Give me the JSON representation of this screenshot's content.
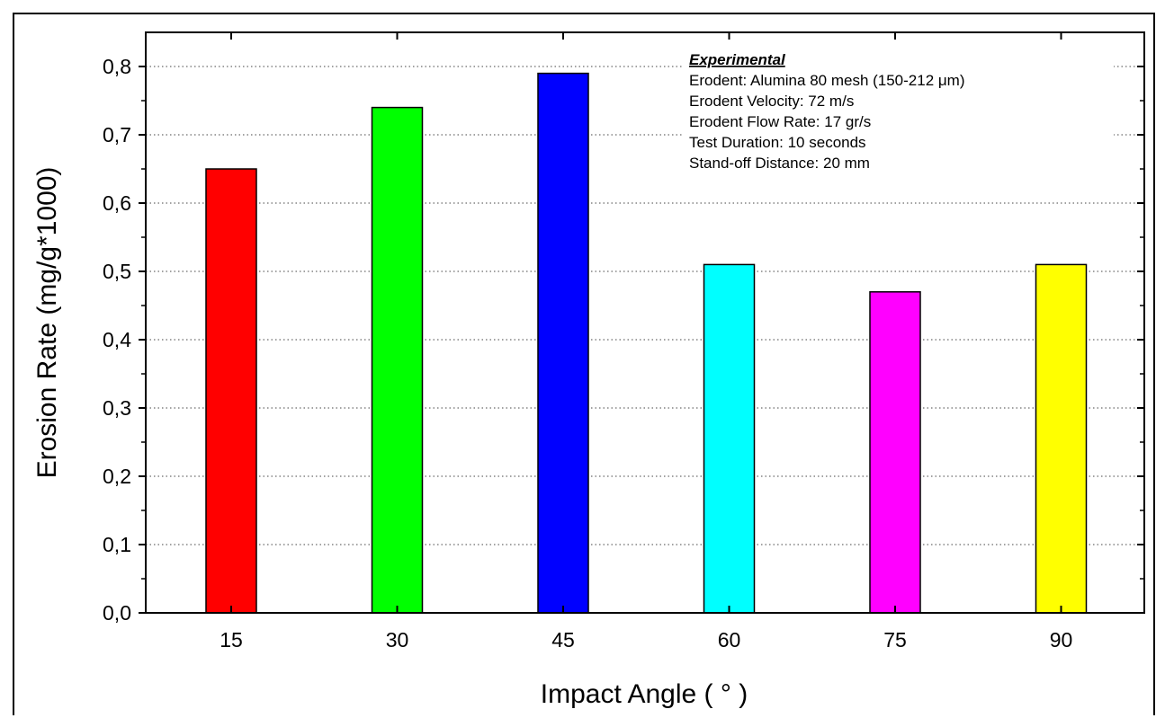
{
  "chart_data": {
    "type": "bar",
    "categories": [
      "15",
      "30",
      "45",
      "60",
      "75",
      "90"
    ],
    "values": [
      0.65,
      0.74,
      0.79,
      0.51,
      0.47,
      0.51
    ],
    "colors": [
      "#ff0000",
      "#00ff00",
      "#0000ff",
      "#00ffff",
      "#ff00ff",
      "#ffff00"
    ],
    "xlabel": "Impact Angle ( ° )",
    "ylabel": "Erosion Rate (mg/g*1000)",
    "ylim": [
      0,
      0.85
    ],
    "yticks": [
      0.0,
      0.1,
      0.2,
      0.3,
      0.4,
      0.5,
      0.6,
      0.7,
      0.8
    ],
    "ytick_labels": [
      "0,0",
      "0,1",
      "0,2",
      "0,3",
      "0,4",
      "0,5",
      "0,6",
      "0,7",
      "0,8"
    ],
    "grid": "horizontal dotted",
    "annotation": {
      "title": "Experimental",
      "lines": [
        "Erodent: Alumina 80 mesh (150-212 μm)",
        "Erodent Velocity: 72 m/s",
        "Erodent Flow Rate: 17 gr/s",
        "Test Duration: 10 seconds",
        "Stand-off Distance: 20 mm"
      ]
    }
  }
}
